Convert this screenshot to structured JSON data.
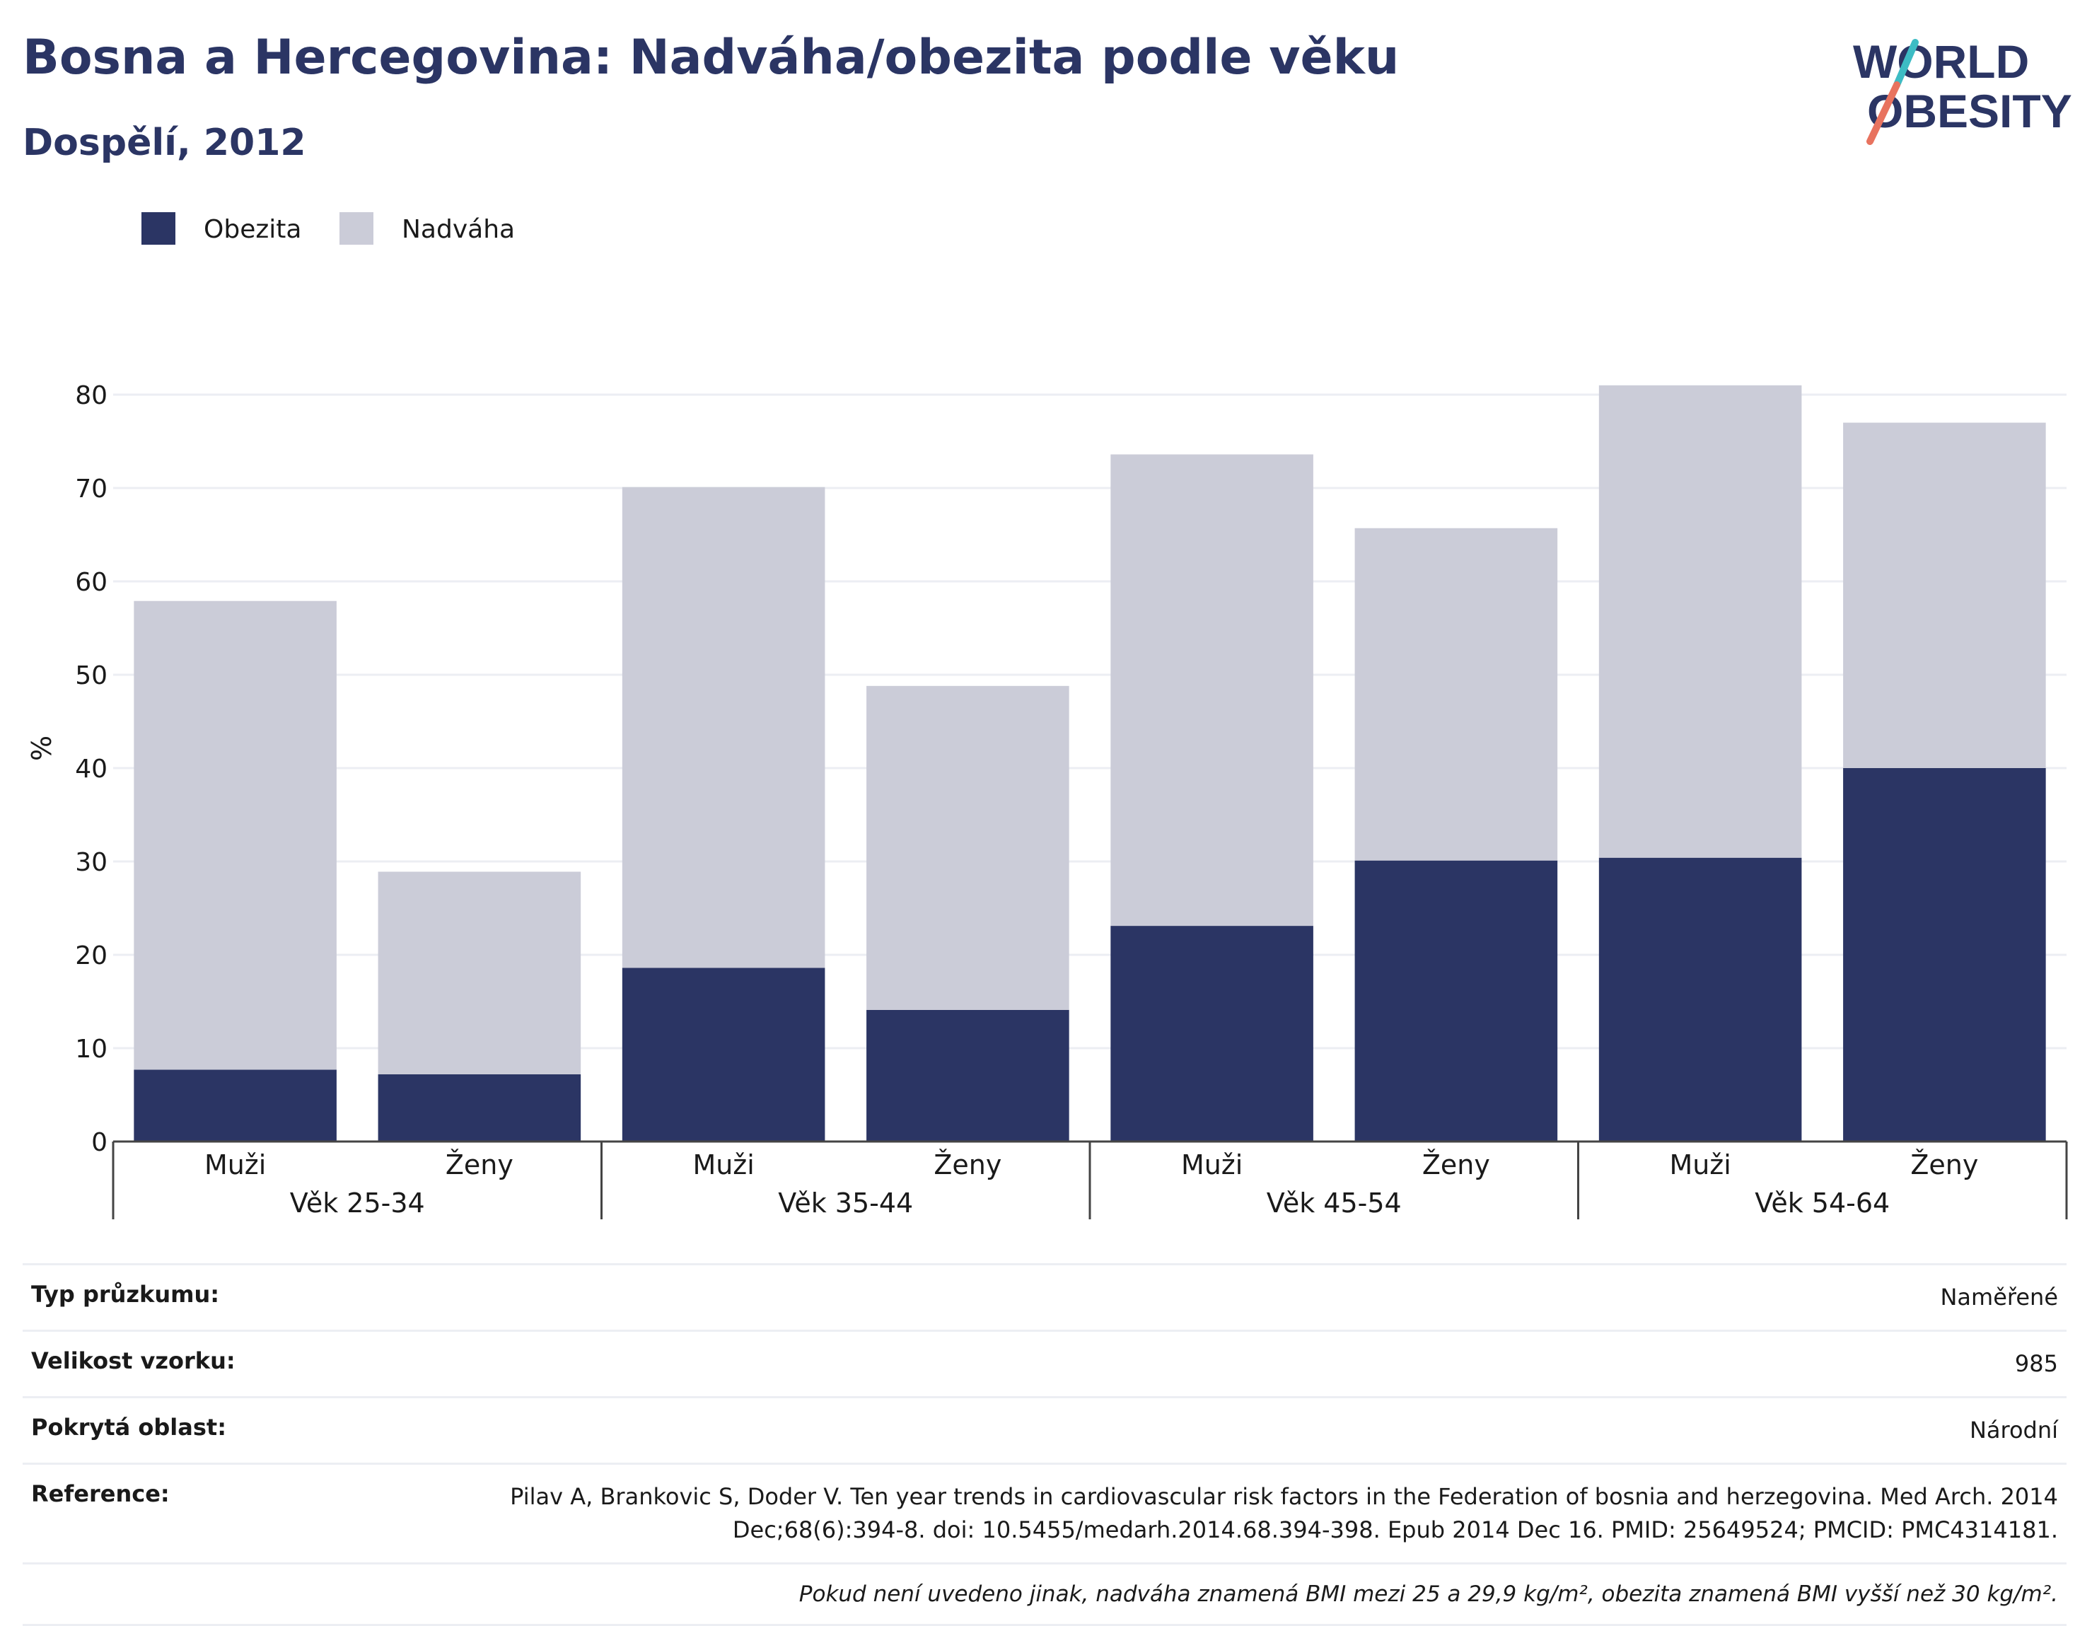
{
  "header": {
    "title": "Bosna a Hercegovina: Nadváha/obezita podle věku",
    "subtitle": "Dospělí, 2012"
  },
  "logo": {
    "line1": "WORLD",
    "line2": "OBESITY",
    "name": "world-obesity-logo"
  },
  "colors": {
    "obesity": "#2b3564",
    "overweight": "#cbccd8",
    "text": "#2b3564",
    "grid": "#eceef3",
    "slash_teal": "#3dbcc4",
    "slash_coral": "#e8735f"
  },
  "chart_data": {
    "type": "bar",
    "stacked": true,
    "ylabel": "%",
    "ylim": [
      0,
      80
    ],
    "yticks": [
      0,
      10,
      20,
      30,
      40,
      50,
      60,
      70,
      80
    ],
    "legend": {
      "position": "top-left",
      "items": [
        "Obezita",
        "Nadváha"
      ]
    },
    "groups": [
      "Věk 25-34",
      "Věk 35-44",
      "Věk 45-54",
      "Věk 54-64"
    ],
    "categories": [
      "Muži",
      "Ženy",
      "Muži",
      "Ženy",
      "Muži",
      "Ženy",
      "Muži",
      "Ženy"
    ],
    "series": [
      {
        "name": "Obezita",
        "values": [
          7.7,
          7.2,
          18.6,
          14.1,
          23.1,
          30.1,
          30.4,
          40.0
        ]
      },
      {
        "name": "Nadváha",
        "values": [
          50.2,
          21.7,
          51.5,
          34.7,
          50.5,
          35.6,
          50.6,
          37.0
        ]
      }
    ],
    "grid": true
  },
  "meta": {
    "rows": [
      {
        "label": "Typ průzkumu:",
        "value": "Naměřené"
      },
      {
        "label": "Velikost vzorku:",
        "value": "985"
      },
      {
        "label": "Pokrytá oblast:",
        "value": "Národní"
      },
      {
        "label": "Reference:",
        "value": "Pilav A, Brankovic S, Doder V. Ten year trends in cardiovascular risk factors in the Federation of bosnia and herzegovina. Med Arch. 2014 Dec;68(6):394-8. doi: 10.5455/medarh.2014.68.394-398. Epub 2014 Dec 16. PMID: 25649524; PMCID: PMC4314181."
      }
    ],
    "note": "Pokud není uvedeno jinak, nadváha znamená BMI mezi 25 a 29,9 kg/m², obezita znamená BMI vyšší než 30 kg/m²."
  }
}
